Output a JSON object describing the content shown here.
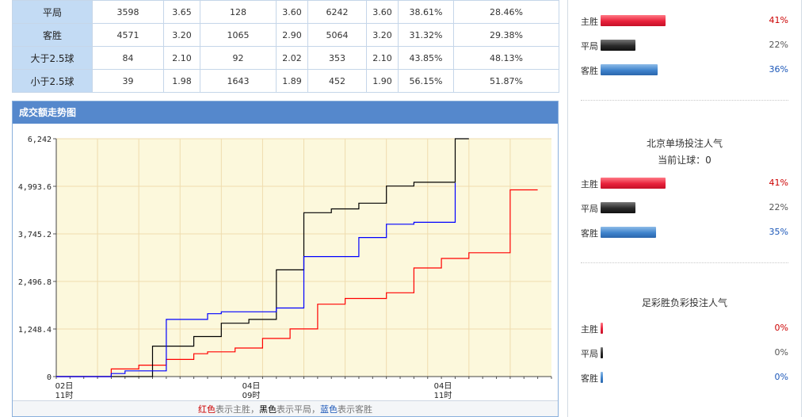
{
  "odds_table": {
    "rows": [
      {
        "label": "平局",
        "cells": [
          "3598",
          "3.65",
          "128",
          "3.60",
          "6242",
          "3.60",
          "38.61%",
          "28.46%"
        ]
      },
      {
        "label": "客胜",
        "cells": [
          "4571",
          "3.20",
          "1065",
          "2.90",
          "5064",
          "3.20",
          "31.32%",
          "29.38%"
        ]
      },
      {
        "label": "大于2.5球",
        "cells": [
          "84",
          "2.10",
          "92",
          "2.02",
          "353",
          "2.10",
          "43.85%",
          "48.13%"
        ]
      },
      {
        "label": "小于2.5球",
        "cells": [
          "39",
          "1.98",
          "1643",
          "1.89",
          "452",
          "1.90",
          "56.15%",
          "51.87%"
        ]
      }
    ]
  },
  "chart_panel": {
    "title": "成交额走势图",
    "legend": {
      "red_word": "红色",
      "red_text": "表示主胜",
      "black_word": "黑色",
      "black_text": "表示平局",
      "blue_word": "蓝色",
      "blue_text": "表示客胜"
    }
  },
  "chart_data": {
    "type": "line",
    "title": "成交额走势图",
    "ylim": [
      0,
      6242
    ],
    "y_ticks": [
      "0",
      "1,248.4",
      "2,496.8",
      "3,745.2",
      "4,993.6",
      "6,242"
    ],
    "x_tick_labels": [
      {
        "date": "02日",
        "time": "11时"
      },
      {
        "date": "04日",
        "time": "09时"
      },
      {
        "date": "04日",
        "time": "11时"
      }
    ],
    "grid": true,
    "series": [
      {
        "name": "主胜",
        "color": "#ff0000",
        "points": [
          [
            0,
            0
          ],
          [
            3,
            0
          ],
          [
            4,
            200
          ],
          [
            5,
            200
          ],
          [
            6,
            300
          ],
          [
            7,
            300
          ],
          [
            8,
            450
          ],
          [
            9,
            450
          ],
          [
            10,
            600
          ],
          [
            11,
            650
          ],
          [
            12,
            650
          ],
          [
            13,
            750
          ],
          [
            14,
            750
          ],
          [
            15,
            1000
          ],
          [
            16,
            1000
          ],
          [
            17,
            1250
          ],
          [
            18,
            1250
          ],
          [
            19,
            1900
          ],
          [
            20,
            1900
          ],
          [
            21,
            2050
          ],
          [
            22,
            2050
          ],
          [
            23,
            2050
          ],
          [
            24,
            2200
          ],
          [
            25,
            2200
          ],
          [
            26,
            2850
          ],
          [
            27,
            2850
          ],
          [
            28,
            3100
          ],
          [
            29,
            3100
          ],
          [
            30,
            3250
          ],
          [
            31,
            3250
          ],
          [
            32,
            3250
          ],
          [
            33,
            4900
          ],
          [
            34,
            4900
          ],
          [
            35,
            4900
          ]
        ]
      },
      {
        "name": "平局",
        "color": "#000000",
        "points": [
          [
            0,
            0
          ],
          [
            4,
            0
          ],
          [
            5,
            0
          ],
          [
            6,
            0
          ],
          [
            7,
            800
          ],
          [
            8,
            800
          ],
          [
            9,
            800
          ],
          [
            10,
            1050
          ],
          [
            11,
            1050
          ],
          [
            12,
            1400
          ],
          [
            13,
            1400
          ],
          [
            14,
            1500
          ],
          [
            15,
            1500
          ],
          [
            16,
            2800
          ],
          [
            17,
            2800
          ],
          [
            18,
            4300
          ],
          [
            19,
            4300
          ],
          [
            20,
            4400
          ],
          [
            21,
            4400
          ],
          [
            22,
            4550
          ],
          [
            23,
            4550
          ],
          [
            24,
            5000
          ],
          [
            25,
            5000
          ],
          [
            26,
            5100
          ],
          [
            27,
            5100
          ],
          [
            28,
            5100
          ],
          [
            29,
            6242
          ],
          [
            30,
            6242
          ]
        ]
      },
      {
        "name": "客胜",
        "color": "#0000ff",
        "points": [
          [
            0,
            0
          ],
          [
            3,
            0
          ],
          [
            4,
            80
          ],
          [
            5,
            150
          ],
          [
            6,
            150
          ],
          [
            7,
            150
          ],
          [
            8,
            1500
          ],
          [
            9,
            1500
          ],
          [
            10,
            1500
          ],
          [
            11,
            1650
          ],
          [
            12,
            1700
          ],
          [
            13,
            1700
          ],
          [
            14,
            1700
          ],
          [
            15,
            1700
          ],
          [
            16,
            1800
          ],
          [
            17,
            1800
          ],
          [
            18,
            3150
          ],
          [
            19,
            3150
          ],
          [
            20,
            3150
          ],
          [
            21,
            3150
          ],
          [
            22,
            3650
          ],
          [
            23,
            3650
          ],
          [
            24,
            4000
          ],
          [
            25,
            4000
          ],
          [
            26,
            4050
          ],
          [
            27,
            4050
          ],
          [
            28,
            4050
          ],
          [
            29,
            5080
          ]
        ]
      }
    ]
  },
  "popularity_top": {
    "items": [
      {
        "label": "主胜",
        "pct": "41%",
        "value": 41,
        "color": "red"
      },
      {
        "label": "平局",
        "pct": "22%",
        "value": 22,
        "color": "black"
      },
      {
        "label": "客胜",
        "pct": "36%",
        "value": 36,
        "color": "blue"
      }
    ]
  },
  "popularity_beijing": {
    "title": "北京单场投注人气",
    "subtitle": "当前让球：0",
    "items": [
      {
        "label": "主胜",
        "pct": "41%",
        "value": 41,
        "color": "red"
      },
      {
        "label": "平局",
        "pct": "22%",
        "value": 22,
        "color": "black"
      },
      {
        "label": "客胜",
        "pct": "35%",
        "value": 35,
        "color": "blue"
      }
    ]
  },
  "popularity_football_lottery": {
    "title": "足彩胜负彩投注人气",
    "items": [
      {
        "label": "主胜",
        "pct": "0%",
        "value": 0,
        "color": "red"
      },
      {
        "label": "平局",
        "pct": "0%",
        "value": 0,
        "color": "black"
      },
      {
        "label": "客胜",
        "pct": "0%",
        "value": 0,
        "color": "blue"
      }
    ]
  }
}
